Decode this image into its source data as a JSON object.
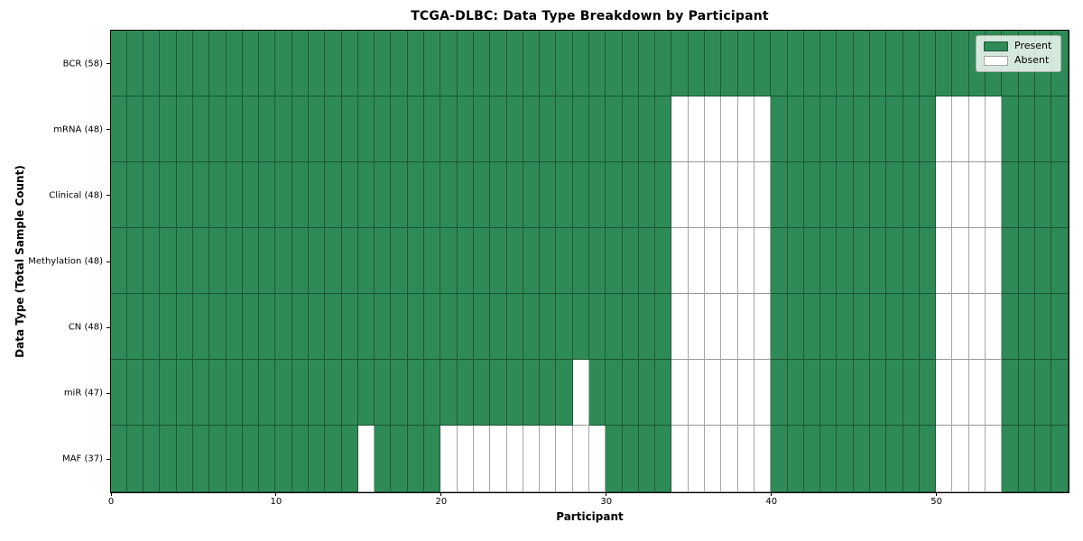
{
  "chart_data": {
    "type": "heatmap",
    "title": "TCGA-DLBC: Data Type Breakdown by Participant",
    "xlabel": "Participant",
    "ylabel": "Data Type (Total Sample Count)",
    "n_participants": 58,
    "x_ticks": [
      0,
      10,
      20,
      30,
      40,
      50
    ],
    "grid": true,
    "legend_position": "upper right",
    "legend_labels": [
      "Present",
      "Absent"
    ],
    "colors": {
      "present": "#2e8b57",
      "absent": "#ffffff",
      "gridline": "rgba(0,0,0,0.35)",
      "frame": "#000000"
    },
    "rows": [
      {
        "label": "BCR (58)",
        "data_type": "BCR",
        "total_samples": 58,
        "absent": []
      },
      {
        "label": "mRNA (48)",
        "data_type": "mRNA",
        "total_samples": 48,
        "absent": [
          34,
          35,
          36,
          37,
          38,
          39,
          50,
          51,
          52,
          53
        ]
      },
      {
        "label": "Clinical (48)",
        "data_type": "Clinical",
        "total_samples": 48,
        "absent": [
          34,
          35,
          36,
          37,
          38,
          39,
          50,
          51,
          52,
          53
        ]
      },
      {
        "label": "Methylation (48)",
        "data_type": "Methylation",
        "total_samples": 48,
        "absent": [
          34,
          35,
          36,
          37,
          38,
          39,
          50,
          51,
          52,
          53
        ]
      },
      {
        "label": "CN (48)",
        "data_type": "CN",
        "total_samples": 48,
        "absent": [
          34,
          35,
          36,
          37,
          38,
          39,
          50,
          51,
          52,
          53
        ]
      },
      {
        "label": "miR (47)",
        "data_type": "miR",
        "total_samples": 47,
        "absent": [
          28,
          34,
          35,
          36,
          37,
          38,
          39,
          50,
          51,
          52,
          53
        ]
      },
      {
        "label": "MAF (37)",
        "data_type": "MAF",
        "total_samples": 37,
        "absent": [
          15,
          20,
          21,
          22,
          23,
          24,
          25,
          26,
          27,
          28,
          29,
          34,
          35,
          36,
          37,
          38,
          39,
          50,
          51,
          52,
          53
        ]
      }
    ]
  }
}
